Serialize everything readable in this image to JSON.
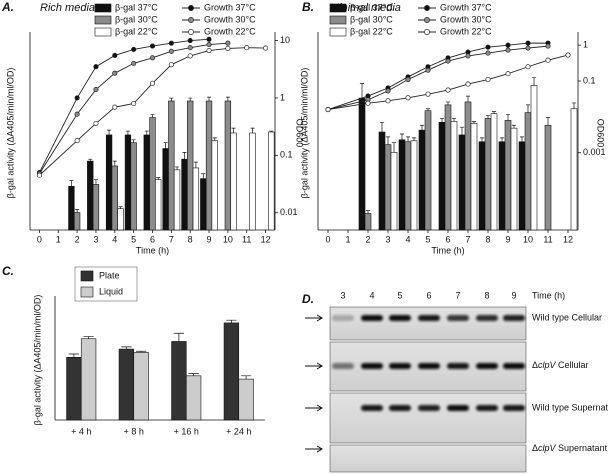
{
  "chart_data": [
    {
      "type": "bar",
      "panel": "A.",
      "title": "Rich media",
      "xlabel": "Time (h)",
      "ylabel": "β-gal activity (ΔA405/min/ml/OD)",
      "y2label": "OD600",
      "xlim": [
        -0.5,
        12.5
      ],
      "xticks": [
        0,
        1,
        2,
        3,
        4,
        5,
        6,
        7,
        8,
        9,
        10,
        11,
        12
      ],
      "ylim": [
        0,
        2
      ],
      "y2lim": [
        0.005,
        12
      ],
      "y2scale": "log",
      "y2ticks": [
        0.01,
        0.1,
        1,
        10
      ],
      "series": [
        {
          "name": "β-gal 37°C",
          "type": "bar",
          "color": "#111111",
          "x": [
            2,
            3,
            4,
            5,
            6,
            7,
            8,
            9
          ],
          "values": [
            0.45,
            0.71,
            0.98,
            0.98,
            0.98,
            0.84,
            0.73,
            0.53
          ],
          "errors": [
            0.06,
            0.02,
            0.05,
            0.04,
            0.04,
            0.06,
            0.07,
            0.05
          ]
        },
        {
          "name": "β-gal 30°C",
          "type": "bar",
          "color": "#8c8c8c",
          "x": [
            2,
            3,
            4,
            5,
            6,
            7,
            8,
            9,
            10
          ],
          "values": [
            0.18,
            0.47,
            0.66,
            0.9,
            1.16,
            1.33,
            1.33,
            1.33,
            1.33
          ],
          "errors": [
            0.03,
            0.05,
            0.05,
            0.03,
            0.03,
            0.03,
            0.03,
            0.04,
            0.04
          ]
        },
        {
          "name": "β-gal 22°C",
          "type": "bar",
          "color": "#ffffff",
          "x": [
            4,
            6,
            7,
            8,
            9,
            10,
            11,
            12
          ],
          "values": [
            0.22,
            0.52,
            0.62,
            0.64,
            0.92,
            1.0,
            1.0,
            1.01
          ],
          "errors": [
            0.02,
            0.02,
            0.03,
            0.06,
            0.03,
            0.05,
            0.05,
            0.01
          ]
        },
        {
          "name": "Growth 37°C",
          "type": "line",
          "axis": "y2",
          "color": "#111111",
          "x": [
            0,
            2,
            3,
            4,
            5,
            6,
            7,
            8,
            9
          ],
          "values": [
            0.05,
            1,
            3.5,
            5.5,
            7,
            8,
            9,
            10,
            10.5
          ]
        },
        {
          "name": "Growth 30°C",
          "type": "line",
          "axis": "y2",
          "color": "#8c8c8c",
          "x": [
            0,
            2,
            3,
            4,
            5,
            6,
            7,
            8,
            9,
            10
          ],
          "values": [
            0.048,
            0.52,
            1.4,
            2.7,
            4,
            5,
            6.5,
            7.5,
            8.5,
            9
          ]
        },
        {
          "name": "Growth 22°C",
          "type": "line",
          "axis": "y2",
          "color": "#ffffff",
          "x": [
            0,
            2,
            3,
            4,
            5,
            6,
            7,
            8,
            9,
            10,
            11,
            12
          ],
          "values": [
            0.045,
            0.18,
            0.36,
            0.69,
            0.8,
            1.8,
            3.8,
            5.4,
            6.7,
            7.3,
            7.5,
            7.4
          ]
        }
      ]
    },
    {
      "type": "bar",
      "panel": "B.",
      "title": "Minimal media",
      "xlabel": "Time (h)",
      "ylabel": "β-gal activity (ΔA405/min/ml/OD)",
      "y2label": "OD600",
      "xlim": [
        -0.5,
        12.5
      ],
      "xticks": [
        0,
        1,
        2,
        3,
        4,
        5,
        6,
        7,
        8,
        9,
        10,
        11,
        12
      ],
      "ylim": [
        0,
        2
      ],
      "y2lim": [
        7e-06,
        1.8
      ],
      "y2scale": "log",
      "y2ticks": [
        1,
        0.1,
        0.001
      ],
      "series": [
        {
          "name": "β-gal 37°C",
          "type": "bar",
          "color": "#111111",
          "x": [
            2,
            3,
            4,
            5,
            6,
            7,
            8,
            9,
            10
          ],
          "values": [
            1.36,
            1.01,
            0.93,
            1.03,
            1.11,
            0.98,
            0.91,
            0.91,
            0.91
          ],
          "errors": [
            0.15,
            0.1,
            0.06,
            0.05,
            0.04,
            0.08,
            0.04,
            0.04,
            0.05
          ]
        },
        {
          "name": "β-gal 30°C",
          "type": "bar",
          "color": "#8c8c8c",
          "x": [
            2,
            3,
            4,
            5,
            6,
            7,
            8,
            9,
            10,
            11
          ],
          "values": [
            0.17,
            0.88,
            0.91,
            1.23,
            1.29,
            1.32,
            1.15,
            1.13,
            1.21,
            1.08
          ],
          "errors": [
            0.03,
            0.08,
            0.05,
            0.02,
            0.03,
            0.06,
            0.03,
            0.06,
            0.08,
            0.08
          ]
        },
        {
          "name": "β-gal 22°C",
          "type": "bar",
          "color": "#ffffff",
          "x": [
            3,
            4,
            6,
            7,
            8,
            9,
            10,
            12
          ],
          "values": [
            0.8,
            0.92,
            1.12,
            1.1,
            1.2,
            1.05,
            1.49,
            1.25
          ],
          "errors": [
            0.1,
            0.03,
            0.03,
            0.02,
            0.02,
            0.03,
            0.08,
            0.06
          ]
        },
        {
          "name": "Growth 37°C",
          "type": "line",
          "axis": "y2",
          "color": "#111111",
          "x": [
            0,
            2,
            3,
            4,
            5,
            6,
            7,
            8,
            9,
            10,
            11
          ],
          "values": [
            0.016,
            0.038,
            0.064,
            0.13,
            0.25,
            0.44,
            0.64,
            0.88,
            1,
            1.14,
            1.14
          ]
        },
        {
          "name": "Growth 30°C",
          "type": "line",
          "axis": "y2",
          "color": "#8c8c8c",
          "x": [
            0,
            2,
            3,
            4,
            5,
            6,
            7,
            8,
            9,
            10,
            11
          ],
          "values": [
            0.016,
            0.03,
            0.053,
            0.11,
            0.2,
            0.36,
            0.5,
            0.6,
            0.73,
            0.83,
            0.94
          ]
        },
        {
          "name": "Growth 22°C",
          "type": "line",
          "axis": "y2",
          "color": "#ffffff",
          "x": [
            0,
            2,
            3,
            4,
            5,
            6,
            7,
            8,
            9,
            10,
            11,
            12
          ],
          "values": [
            0.016,
            0.024,
            0.028,
            0.034,
            0.043,
            0.056,
            0.082,
            0.11,
            0.16,
            0.25,
            0.38,
            0.53
          ]
        }
      ]
    },
    {
      "type": "bar",
      "panel": "C.",
      "ylabel": "β-gal activity (ΔA405/min/ml/OD)",
      "categories": [
        "+ 4 h",
        "+ 8 h",
        "+ 16 h",
        "+ 24 h"
      ],
      "ylim": [
        0,
        2.2
      ],
      "legend": "upper left",
      "series": [
        {
          "name": "Plate",
          "type": "bar",
          "color": "#333333",
          "values": [
            1.15,
            1.3,
            1.44,
            1.78
          ],
          "errors": [
            0.06,
            0.04,
            0.15,
            0.05
          ]
        },
        {
          "name": "Liquid",
          "type": "bar",
          "color": "#cccccc",
          "values": [
            1.49,
            1.24,
            0.81,
            0.75
          ],
          "errors": [
            0.04,
            0.02,
            0.04,
            0.06
          ]
        }
      ]
    }
  ],
  "blot": {
    "panel": "D.",
    "time_label": "Time (h)",
    "lanes": [
      "3",
      "4",
      "5",
      "6",
      "7",
      "8",
      "9"
    ],
    "rows": [
      {
        "label": "Wild type Cellular"
      },
      {
        "label": [
          "Δ",
          "clpV",
          " Cellular"
        ]
      },
      {
        "label": "Wild type Supernatant"
      },
      {
        "label": [
          "Δ",
          "clpV",
          " Supernatant"
        ]
      }
    ]
  }
}
